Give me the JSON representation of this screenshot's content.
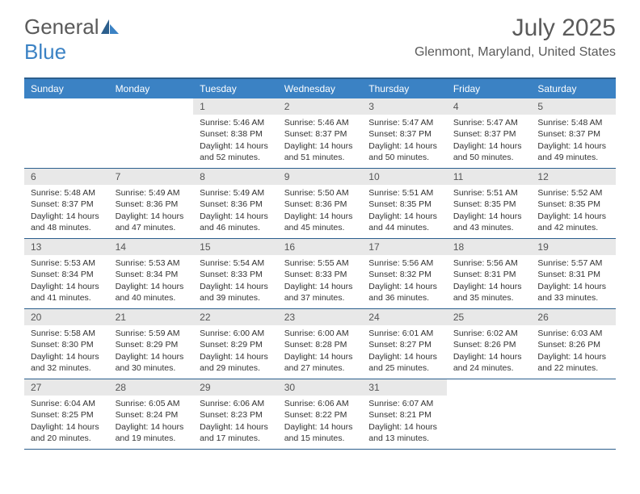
{
  "logo": {
    "main": "General",
    "accent": "Blue"
  },
  "title": "July 2025",
  "location": "Glenmont, Maryland, United States",
  "colors": {
    "header_bg": "#3b82c4",
    "border": "#2c5f8d",
    "daynum_bg": "#e8e8e8",
    "logo_blue": "#3b82c4",
    "text_gray": "#5a5a5a"
  },
  "day_names": [
    "Sunday",
    "Monday",
    "Tuesday",
    "Wednesday",
    "Thursday",
    "Friday",
    "Saturday"
  ],
  "weeks": [
    [
      null,
      null,
      {
        "d": "1",
        "sr": "5:46 AM",
        "ss": "8:38 PM",
        "dl": "14 hours and 52 minutes."
      },
      {
        "d": "2",
        "sr": "5:46 AM",
        "ss": "8:37 PM",
        "dl": "14 hours and 51 minutes."
      },
      {
        "d": "3",
        "sr": "5:47 AM",
        "ss": "8:37 PM",
        "dl": "14 hours and 50 minutes."
      },
      {
        "d": "4",
        "sr": "5:47 AM",
        "ss": "8:37 PM",
        "dl": "14 hours and 50 minutes."
      },
      {
        "d": "5",
        "sr": "5:48 AM",
        "ss": "8:37 PM",
        "dl": "14 hours and 49 minutes."
      }
    ],
    [
      {
        "d": "6",
        "sr": "5:48 AM",
        "ss": "8:37 PM",
        "dl": "14 hours and 48 minutes."
      },
      {
        "d": "7",
        "sr": "5:49 AM",
        "ss": "8:36 PM",
        "dl": "14 hours and 47 minutes."
      },
      {
        "d": "8",
        "sr": "5:49 AM",
        "ss": "8:36 PM",
        "dl": "14 hours and 46 minutes."
      },
      {
        "d": "9",
        "sr": "5:50 AM",
        "ss": "8:36 PM",
        "dl": "14 hours and 45 minutes."
      },
      {
        "d": "10",
        "sr": "5:51 AM",
        "ss": "8:35 PM",
        "dl": "14 hours and 44 minutes."
      },
      {
        "d": "11",
        "sr": "5:51 AM",
        "ss": "8:35 PM",
        "dl": "14 hours and 43 minutes."
      },
      {
        "d": "12",
        "sr": "5:52 AM",
        "ss": "8:35 PM",
        "dl": "14 hours and 42 minutes."
      }
    ],
    [
      {
        "d": "13",
        "sr": "5:53 AM",
        "ss": "8:34 PM",
        "dl": "14 hours and 41 minutes."
      },
      {
        "d": "14",
        "sr": "5:53 AM",
        "ss": "8:34 PM",
        "dl": "14 hours and 40 minutes."
      },
      {
        "d": "15",
        "sr": "5:54 AM",
        "ss": "8:33 PM",
        "dl": "14 hours and 39 minutes."
      },
      {
        "d": "16",
        "sr": "5:55 AM",
        "ss": "8:33 PM",
        "dl": "14 hours and 37 minutes."
      },
      {
        "d": "17",
        "sr": "5:56 AM",
        "ss": "8:32 PM",
        "dl": "14 hours and 36 minutes."
      },
      {
        "d": "18",
        "sr": "5:56 AM",
        "ss": "8:31 PM",
        "dl": "14 hours and 35 minutes."
      },
      {
        "d": "19",
        "sr": "5:57 AM",
        "ss": "8:31 PM",
        "dl": "14 hours and 33 minutes."
      }
    ],
    [
      {
        "d": "20",
        "sr": "5:58 AM",
        "ss": "8:30 PM",
        "dl": "14 hours and 32 minutes."
      },
      {
        "d": "21",
        "sr": "5:59 AM",
        "ss": "8:29 PM",
        "dl": "14 hours and 30 minutes."
      },
      {
        "d": "22",
        "sr": "6:00 AM",
        "ss": "8:29 PM",
        "dl": "14 hours and 29 minutes."
      },
      {
        "d": "23",
        "sr": "6:00 AM",
        "ss": "8:28 PM",
        "dl": "14 hours and 27 minutes."
      },
      {
        "d": "24",
        "sr": "6:01 AM",
        "ss": "8:27 PM",
        "dl": "14 hours and 25 minutes."
      },
      {
        "d": "25",
        "sr": "6:02 AM",
        "ss": "8:26 PM",
        "dl": "14 hours and 24 minutes."
      },
      {
        "d": "26",
        "sr": "6:03 AM",
        "ss": "8:26 PM",
        "dl": "14 hours and 22 minutes."
      }
    ],
    [
      {
        "d": "27",
        "sr": "6:04 AM",
        "ss": "8:25 PM",
        "dl": "14 hours and 20 minutes."
      },
      {
        "d": "28",
        "sr": "6:05 AM",
        "ss": "8:24 PM",
        "dl": "14 hours and 19 minutes."
      },
      {
        "d": "29",
        "sr": "6:06 AM",
        "ss": "8:23 PM",
        "dl": "14 hours and 17 minutes."
      },
      {
        "d": "30",
        "sr": "6:06 AM",
        "ss": "8:22 PM",
        "dl": "14 hours and 15 minutes."
      },
      {
        "d": "31",
        "sr": "6:07 AM",
        "ss": "8:21 PM",
        "dl": "14 hours and 13 minutes."
      },
      null,
      null
    ]
  ],
  "labels": {
    "sunrise": "Sunrise:",
    "sunset": "Sunset:",
    "daylight": "Daylight:"
  }
}
